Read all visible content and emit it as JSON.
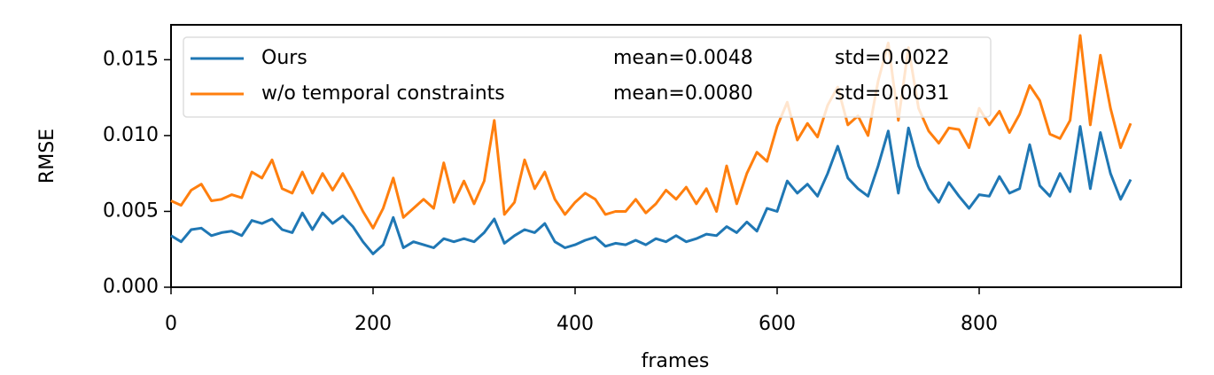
{
  "chart_data": {
    "type": "line",
    "x_label": "frames",
    "y_label": "RMSE",
    "x": [
      0,
      10,
      20,
      30,
      40,
      50,
      60,
      70,
      80,
      90,
      100,
      110,
      120,
      130,
      140,
      150,
      160,
      170,
      180,
      190,
      200,
      210,
      220,
      230,
      240,
      250,
      260,
      270,
      280,
      290,
      300,
      310,
      320,
      330,
      340,
      350,
      360,
      370,
      380,
      390,
      400,
      410,
      420,
      430,
      440,
      450,
      460,
      470,
      480,
      490,
      500,
      510,
      520,
      530,
      540,
      550,
      560,
      570,
      580,
      590,
      600,
      610,
      620,
      630,
      640,
      650,
      660,
      670,
      680,
      690,
      700,
      710,
      720,
      730,
      740,
      750,
      760,
      770,
      780,
      790,
      800,
      810,
      820,
      830,
      840,
      850,
      860,
      870,
      880,
      890,
      900,
      910,
      920,
      930,
      940,
      950
    ],
    "series": [
      {
        "name": "Ours",
        "mean_label": "mean=0.0048",
        "std_label": "std=0.0022",
        "color": "#1f77b4",
        "values": [
          0.0034,
          0.003,
          0.0038,
          0.0039,
          0.0034,
          0.0036,
          0.0037,
          0.0034,
          0.0044,
          0.0042,
          0.0045,
          0.0038,
          0.0036,
          0.0049,
          0.0038,
          0.0049,
          0.0042,
          0.0047,
          0.004,
          0.003,
          0.0022,
          0.0028,
          0.0046,
          0.0026,
          0.003,
          0.0028,
          0.0026,
          0.0032,
          0.003,
          0.0032,
          0.003,
          0.0036,
          0.0045,
          0.0029,
          0.0034,
          0.0038,
          0.0036,
          0.0042,
          0.003,
          0.0026,
          0.0028,
          0.0031,
          0.0033,
          0.0027,
          0.0029,
          0.0028,
          0.0031,
          0.0028,
          0.0032,
          0.003,
          0.0034,
          0.003,
          0.0032,
          0.0035,
          0.0034,
          0.004,
          0.0036,
          0.0043,
          0.0037,
          0.0052,
          0.005,
          0.007,
          0.0062,
          0.0068,
          0.006,
          0.0075,
          0.0093,
          0.0072,
          0.0065,
          0.006,
          0.008,
          0.0103,
          0.0062,
          0.0105,
          0.008,
          0.0065,
          0.0056,
          0.0069,
          0.006,
          0.0052,
          0.0061,
          0.006,
          0.0073,
          0.0062,
          0.0065,
          0.0094,
          0.0067,
          0.006,
          0.0075,
          0.0063,
          0.0106,
          0.0065,
          0.0102,
          0.0075,
          0.0058,
          0.0071
        ]
      },
      {
        "name": "w/o temporal constraints",
        "mean_label": "mean=0.0080",
        "std_label": "std=0.0031",
        "color": "#ff7f0e",
        "values": [
          0.0057,
          0.0054,
          0.0064,
          0.0068,
          0.0057,
          0.0058,
          0.0061,
          0.0059,
          0.0076,
          0.0072,
          0.0084,
          0.0065,
          0.0062,
          0.0076,
          0.0062,
          0.0075,
          0.0064,
          0.0075,
          0.0063,
          0.005,
          0.0039,
          0.0052,
          0.0072,
          0.0046,
          0.0052,
          0.0058,
          0.0052,
          0.0082,
          0.0056,
          0.007,
          0.0055,
          0.007,
          0.011,
          0.0048,
          0.0056,
          0.0084,
          0.0065,
          0.0076,
          0.0058,
          0.0048,
          0.0056,
          0.0062,
          0.0058,
          0.0048,
          0.005,
          0.005,
          0.0058,
          0.0049,
          0.0055,
          0.0064,
          0.0058,
          0.0066,
          0.0055,
          0.0065,
          0.005,
          0.008,
          0.0055,
          0.0075,
          0.0089,
          0.0083,
          0.0106,
          0.0122,
          0.0097,
          0.0108,
          0.0099,
          0.012,
          0.0132,
          0.0107,
          0.0113,
          0.01,
          0.0136,
          0.0161,
          0.011,
          0.0158,
          0.0118,
          0.0103,
          0.0095,
          0.0105,
          0.0104,
          0.0092,
          0.0118,
          0.0107,
          0.0116,
          0.0102,
          0.0114,
          0.0133,
          0.0123,
          0.0101,
          0.0098,
          0.011,
          0.0166,
          0.0107,
          0.0153,
          0.0118,
          0.0092,
          0.0108
        ]
      }
    ],
    "xlim": [
      0,
      1000
    ],
    "xticks": [
      0,
      200,
      400,
      600,
      800
    ],
    "ylim": [
      0,
      0.0173
    ],
    "yticks": [
      {
        "value": 0,
        "label": "0.000"
      },
      {
        "value": 0.005,
        "label": "0.005"
      },
      {
        "value": 0.01,
        "label": "0.010"
      },
      {
        "value": 0.015,
        "label": "0.015"
      }
    ],
    "grid": false,
    "legend": "upper left"
  }
}
